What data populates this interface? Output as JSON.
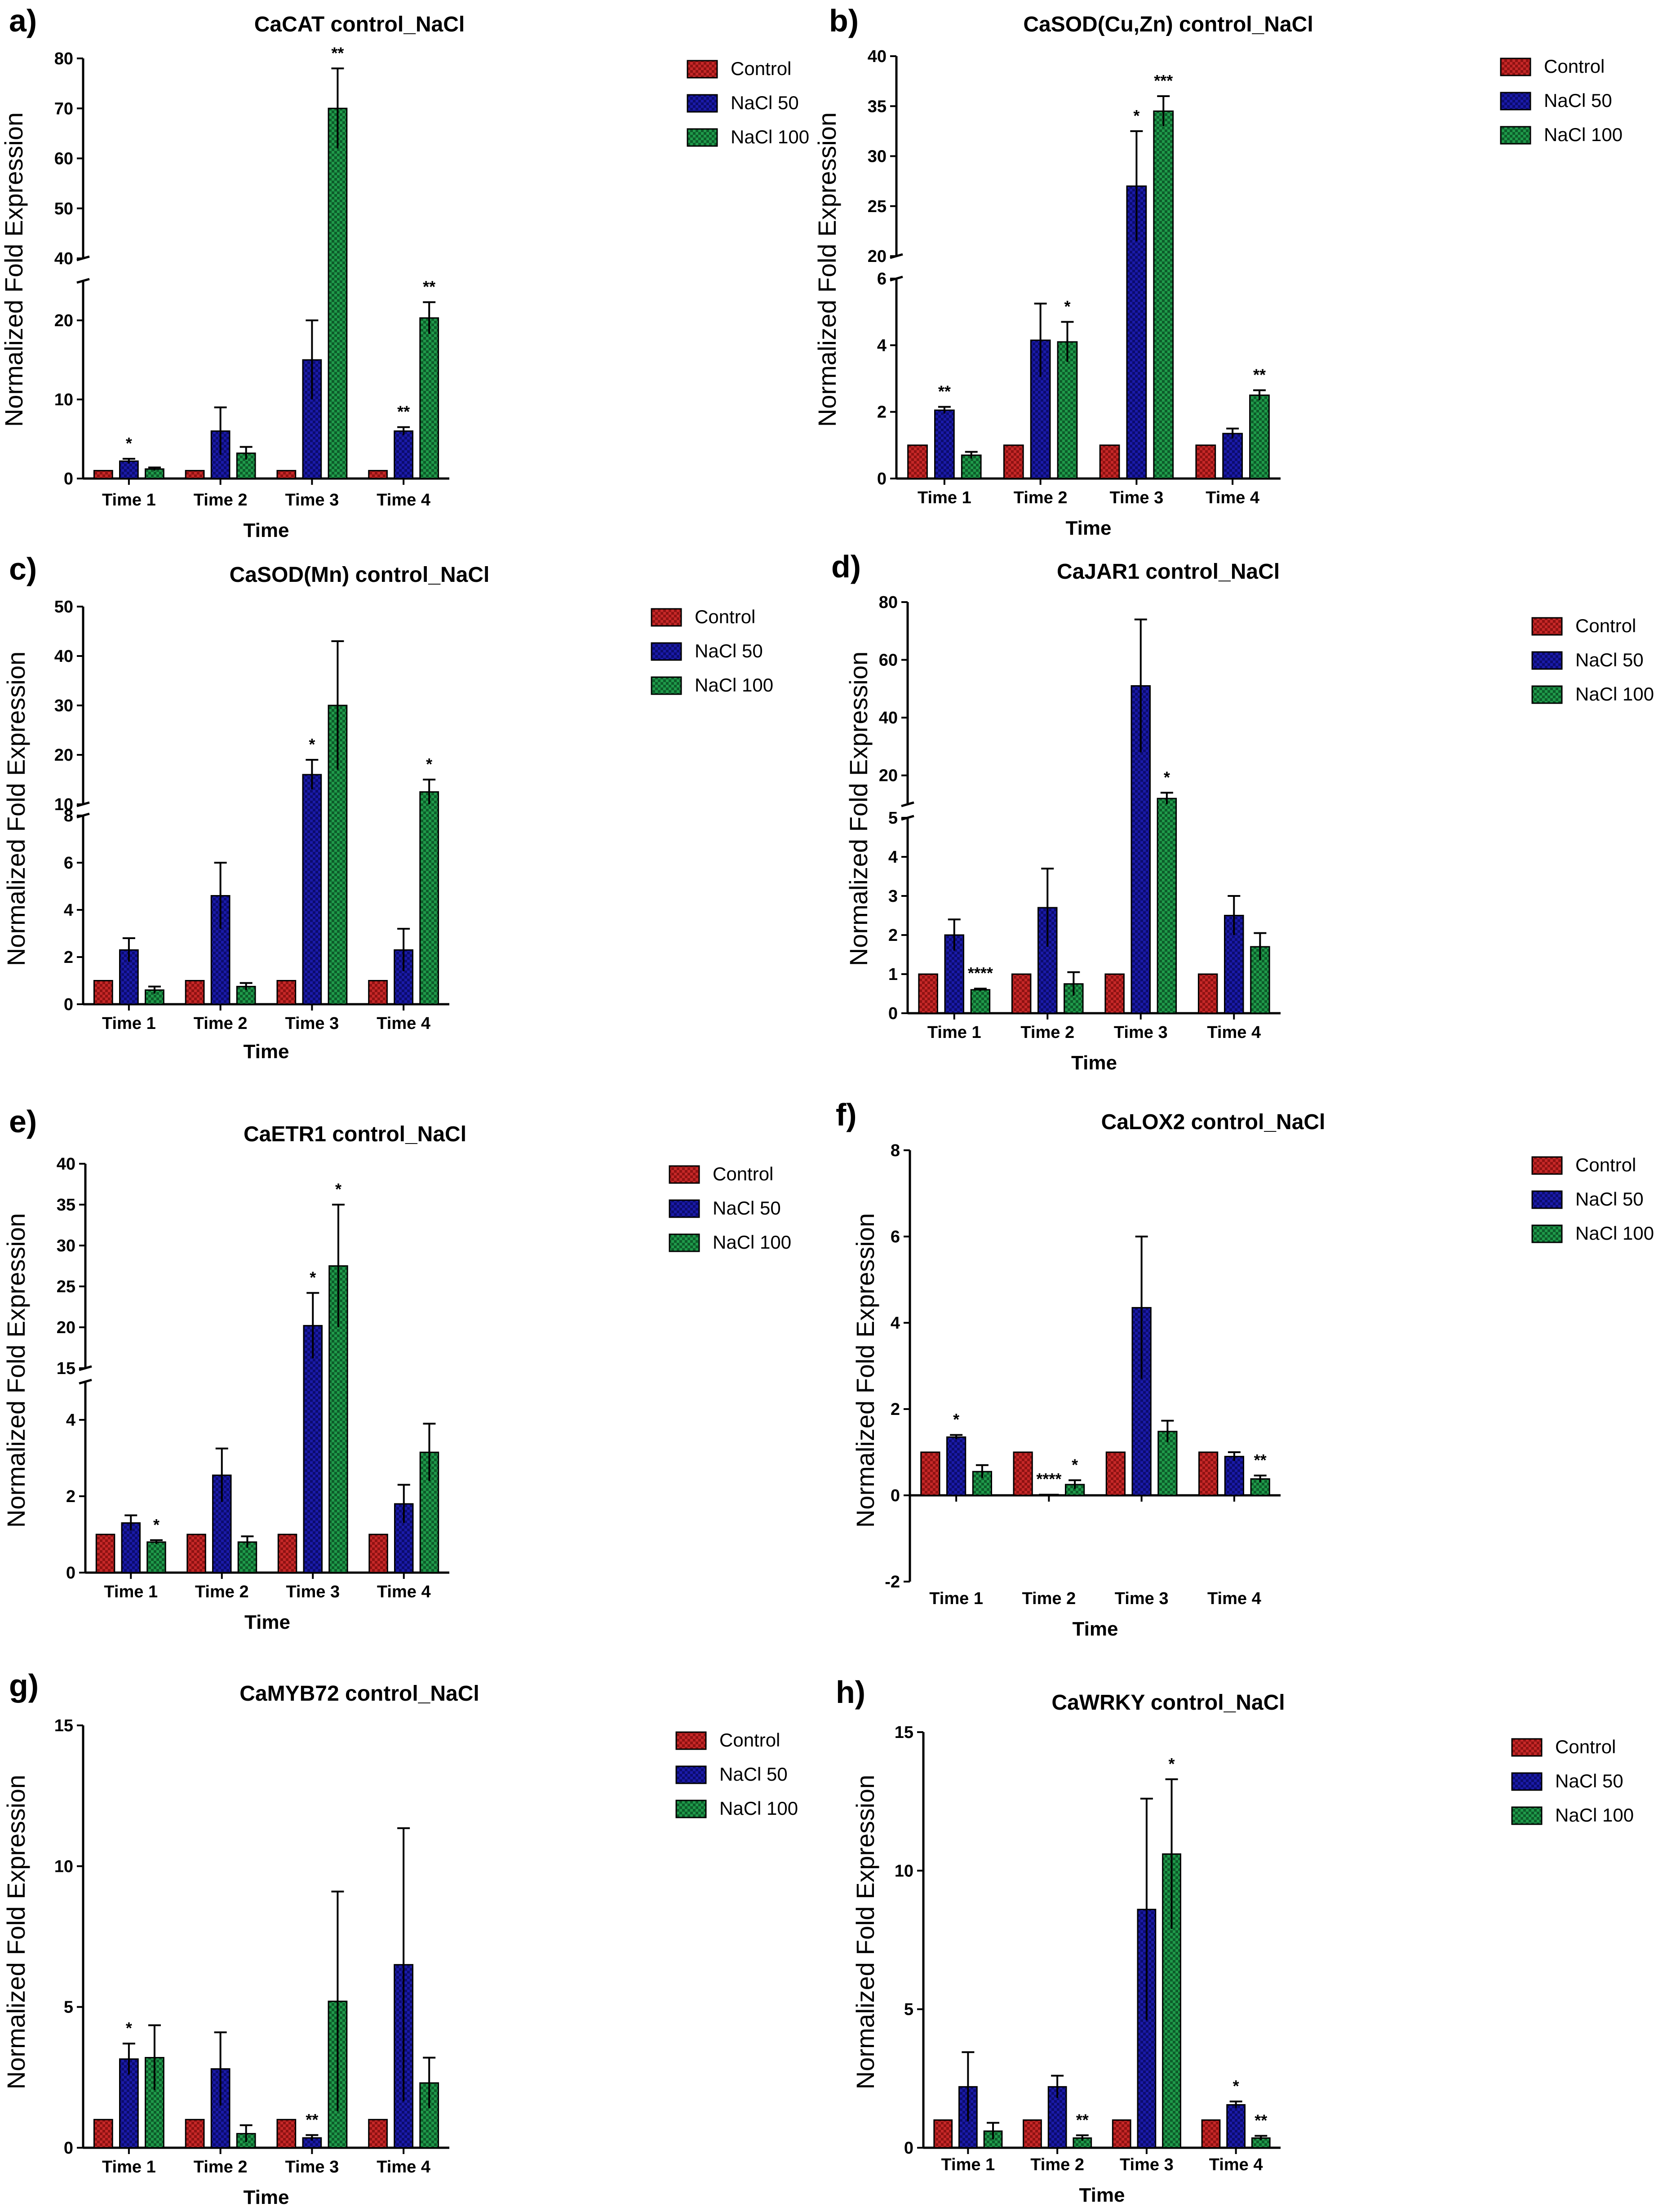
{
  "colors": {
    "control": "#c62828",
    "nacl50": "#1a1aa8",
    "nacl100": "#1f9a4a",
    "axis": "#000000"
  },
  "legend_labels": [
    "Control",
    "NaCl 50",
    "NaCl 100"
  ],
  "chart_data": [
    {
      "panel": "a)",
      "type": "bar",
      "title": "CaCAT control_NaCl",
      "xlabel": "Time",
      "ylabel": "Normalized Fold Expression",
      "categories": [
        "Time 1",
        "Time 2",
        "Time 3",
        "Time 4"
      ],
      "axis_break": {
        "lower": [
          0,
          25
        ],
        "upper": [
          40,
          80
        ]
      },
      "lower_ticks": [
        0,
        10,
        20
      ],
      "upper_ticks": [
        40,
        50,
        60,
        70,
        80
      ],
      "series": [
        {
          "name": "Control",
          "values": [
            1,
            1,
            1,
            1
          ],
          "errors": [
            0,
            0,
            0,
            0
          ]
        },
        {
          "name": "NaCl 50",
          "values": [
            2.2,
            6,
            15,
            6
          ],
          "errors": [
            0.3,
            3,
            5,
            0.5
          ]
        },
        {
          "name": "NaCl 100",
          "values": [
            1.2,
            3.2,
            70,
            20.3
          ],
          "errors": [
            0.2,
            0.8,
            8,
            2
          ]
        }
      ],
      "significance": [
        {
          "series": 1,
          "cat": 0,
          "label": "*"
        },
        {
          "series": 2,
          "cat": 2,
          "label": "**"
        },
        {
          "series": 1,
          "cat": 3,
          "label": "**"
        },
        {
          "series": 2,
          "cat": 3,
          "label": "**"
        }
      ]
    },
    {
      "panel": "b)",
      "type": "bar",
      "title": "CaSOD(Cu,Zn) control_NaCl",
      "xlabel": "Time",
      "ylabel": "Normalized Fold Expression",
      "categories": [
        "Time 1",
        "Time 2",
        "Time 3",
        "Time 4"
      ],
      "axis_break": {
        "lower": [
          0,
          6
        ],
        "upper": [
          20,
          40
        ]
      },
      "lower_ticks": [
        0,
        2,
        4,
        6
      ],
      "upper_ticks": [
        20,
        25,
        30,
        35,
        40
      ],
      "series": [
        {
          "name": "Control",
          "values": [
            1,
            1,
            1,
            1
          ],
          "errors": [
            0,
            0,
            0,
            0
          ]
        },
        {
          "name": "NaCl 50",
          "values": [
            2.05,
            4.15,
            27,
            1.35
          ],
          "errors": [
            0.1,
            1.1,
            5.5,
            0.15
          ]
        },
        {
          "name": "NaCl 100",
          "values": [
            0.7,
            4.1,
            34.5,
            2.5
          ],
          "errors": [
            0.1,
            0.6,
            1.5,
            0.15
          ]
        }
      ],
      "significance": [
        {
          "series": 1,
          "cat": 0,
          "label": "**"
        },
        {
          "series": 2,
          "cat": 1,
          "label": "*"
        },
        {
          "series": 1,
          "cat": 2,
          "label": "*"
        },
        {
          "series": 2,
          "cat": 2,
          "label": "***"
        },
        {
          "series": 2,
          "cat": 3,
          "label": "**"
        }
      ]
    },
    {
      "panel": "c)",
      "type": "bar",
      "title": "CaSOD(Mn) control_NaCl",
      "xlabel": "Time",
      "ylabel": "Normalized Fold Expression",
      "categories": [
        "Time 1",
        "Time 2",
        "Time 3",
        "Time 4"
      ],
      "axis_break": {
        "lower": [
          0,
          8
        ],
        "upper": [
          10,
          50
        ]
      },
      "lower_ticks": [
        0,
        2,
        4,
        6,
        8
      ],
      "upper_ticks": [
        10,
        20,
        30,
        40,
        50
      ],
      "series": [
        {
          "name": "Control",
          "values": [
            1,
            1,
            1,
            1
          ],
          "errors": [
            0,
            0,
            0,
            0
          ]
        },
        {
          "name": "NaCl 50",
          "values": [
            2.3,
            4.6,
            16,
            2.3
          ],
          "errors": [
            0.5,
            1.4,
            3,
            0.9
          ]
        },
        {
          "name": "NaCl 100",
          "values": [
            0.6,
            0.75,
            30,
            12.5
          ],
          "errors": [
            0.15,
            0.15,
            13,
            2.5
          ]
        }
      ],
      "significance": [
        {
          "series": 1,
          "cat": 2,
          "label": "*"
        },
        {
          "series": 2,
          "cat": 3,
          "label": "*"
        }
      ]
    },
    {
      "panel": "d)",
      "type": "bar",
      "title": "CaJAR1 control_NaCl",
      "xlabel": "Time",
      "ylabel": "Normalized Fold Expression",
      "categories": [
        "Time 1",
        "Time 2",
        "Time 3",
        "Time 4"
      ],
      "axis_break": {
        "lower": [
          0,
          5
        ],
        "upper": [
          10,
          80
        ]
      },
      "lower_ticks": [
        0,
        1,
        2,
        3,
        4,
        5
      ],
      "upper_ticks": [
        20,
        40,
        60,
        80
      ],
      "series": [
        {
          "name": "Control",
          "values": [
            1,
            1,
            1,
            1
          ],
          "errors": [
            0,
            0,
            0,
            0
          ]
        },
        {
          "name": "NaCl 50",
          "values": [
            2,
            2.7,
            51,
            2.5
          ],
          "errors": [
            0.4,
            1,
            23,
            0.5
          ]
        },
        {
          "name": "NaCl 100",
          "values": [
            0.6,
            0.75,
            12,
            1.7
          ],
          "errors": [
            0.03,
            0.3,
            2,
            0.35
          ]
        }
      ],
      "significance": [
        {
          "series": 2,
          "cat": 0,
          "label": "****"
        },
        {
          "series": 2,
          "cat": 2,
          "label": "*"
        }
      ]
    },
    {
      "panel": "e)",
      "type": "bar",
      "title": "CaETR1 control_NaCl",
      "xlabel": "Time",
      "ylabel": "Normalized Fold Expression",
      "categories": [
        "Time 1",
        "Time 2",
        "Time 3",
        "Time 4"
      ],
      "axis_break": {
        "lower": [
          0,
          5
        ],
        "upper": [
          15,
          40
        ]
      },
      "lower_ticks": [
        0,
        2,
        4
      ],
      "upper_ticks": [
        15,
        20,
        25,
        30,
        35,
        40
      ],
      "series": [
        {
          "name": "Control",
          "values": [
            1,
            1,
            1,
            1
          ],
          "errors": [
            0,
            0,
            0,
            0
          ]
        },
        {
          "name": "NaCl 50",
          "values": [
            1.3,
            2.55,
            20.2,
            1.8
          ],
          "errors": [
            0.2,
            0.7,
            4,
            0.5
          ]
        },
        {
          "name": "NaCl 100",
          "values": [
            0.8,
            0.8,
            27.5,
            3.15
          ],
          "errors": [
            0.05,
            0.15,
            7.5,
            0.75
          ]
        }
      ],
      "significance": [
        {
          "series": 2,
          "cat": 0,
          "label": "*"
        },
        {
          "series": 1,
          "cat": 2,
          "label": "*"
        },
        {
          "series": 2,
          "cat": 2,
          "label": "*"
        }
      ]
    },
    {
      "panel": "f)",
      "type": "bar",
      "title": "CaLOX2 control_NaCl",
      "xlabel": "Time",
      "ylabel": "Normalized Fold Expression",
      "categories": [
        "Time 1",
        "Time 2",
        "Time 3",
        "Time 4"
      ],
      "ylim": [
        -2,
        8
      ],
      "ticks": [
        -2,
        0,
        2,
        4,
        6,
        8
      ],
      "series": [
        {
          "name": "Control",
          "values": [
            1,
            1,
            1,
            1
          ],
          "errors": [
            0,
            0,
            0,
            0
          ]
        },
        {
          "name": "NaCl 50",
          "values": [
            1.35,
            0.02,
            4.35,
            0.9
          ],
          "errors": [
            0.05,
            0,
            1.65,
            0.1
          ]
        },
        {
          "name": "NaCl 100",
          "values": [
            0.55,
            0.25,
            1.48,
            0.38
          ],
          "errors": [
            0.15,
            0.1,
            0.25,
            0.08
          ]
        }
      ],
      "significance": [
        {
          "series": 1,
          "cat": 0,
          "label": "*"
        },
        {
          "series": 1,
          "cat": 1,
          "label": "****"
        },
        {
          "series": 2,
          "cat": 1,
          "label": "*"
        },
        {
          "series": 2,
          "cat": 3,
          "label": "**"
        }
      ]
    },
    {
      "panel": "g)",
      "type": "bar",
      "title": "CaMYB72 control_NaCl",
      "xlabel": "Time",
      "ylabel": "Normalized Fold Expression",
      "categories": [
        "Time 1",
        "Time 2",
        "Time 3",
        "Time 4"
      ],
      "ylim": [
        0,
        15
      ],
      "ticks": [
        0,
        5,
        10,
        15
      ],
      "series": [
        {
          "name": "Control",
          "values": [
            1,
            1,
            1,
            1
          ],
          "errors": [
            0,
            0,
            0,
            0
          ]
        },
        {
          "name": "NaCl 50",
          "values": [
            3.15,
            2.8,
            0.35,
            6.5
          ],
          "errors": [
            0.55,
            1.3,
            0.1,
            4.85
          ]
        },
        {
          "name": "NaCl 100",
          "values": [
            3.2,
            0.5,
            5.2,
            2.3
          ],
          "errors": [
            1.15,
            0.3,
            3.9,
            0.9
          ]
        }
      ],
      "significance": [
        {
          "series": 1,
          "cat": 0,
          "label": "*"
        },
        {
          "series": 1,
          "cat": 2,
          "label": "**"
        }
      ]
    },
    {
      "panel": "h)",
      "type": "bar",
      "title": "CaWRKY control_NaCl",
      "xlabel": "Time",
      "ylabel": "Normalized Fold Expression",
      "categories": [
        "Time 1",
        "Time 2",
        "Time 3",
        "Time 4"
      ],
      "ylim": [
        0,
        15
      ],
      "ticks": [
        0,
        5,
        10,
        15
      ],
      "series": [
        {
          "name": "Control",
          "values": [
            1,
            1,
            1,
            1
          ],
          "errors": [
            0,
            0,
            0,
            0
          ]
        },
        {
          "name": "NaCl 50",
          "values": [
            2.2,
            2.2,
            8.6,
            1.55
          ],
          "errors": [
            1.25,
            0.4,
            4,
            0.12
          ]
        },
        {
          "name": "NaCl 100",
          "values": [
            0.6,
            0.35,
            10.6,
            0.35
          ],
          "errors": [
            0.3,
            0.1,
            2.7,
            0.08
          ]
        }
      ],
      "significance": [
        {
          "series": 2,
          "cat": 1,
          "label": "**"
        },
        {
          "series": 2,
          "cat": 2,
          "label": "*"
        },
        {
          "series": 1,
          "cat": 3,
          "label": "*"
        },
        {
          "series": 2,
          "cat": 3,
          "label": "**"
        }
      ]
    }
  ]
}
